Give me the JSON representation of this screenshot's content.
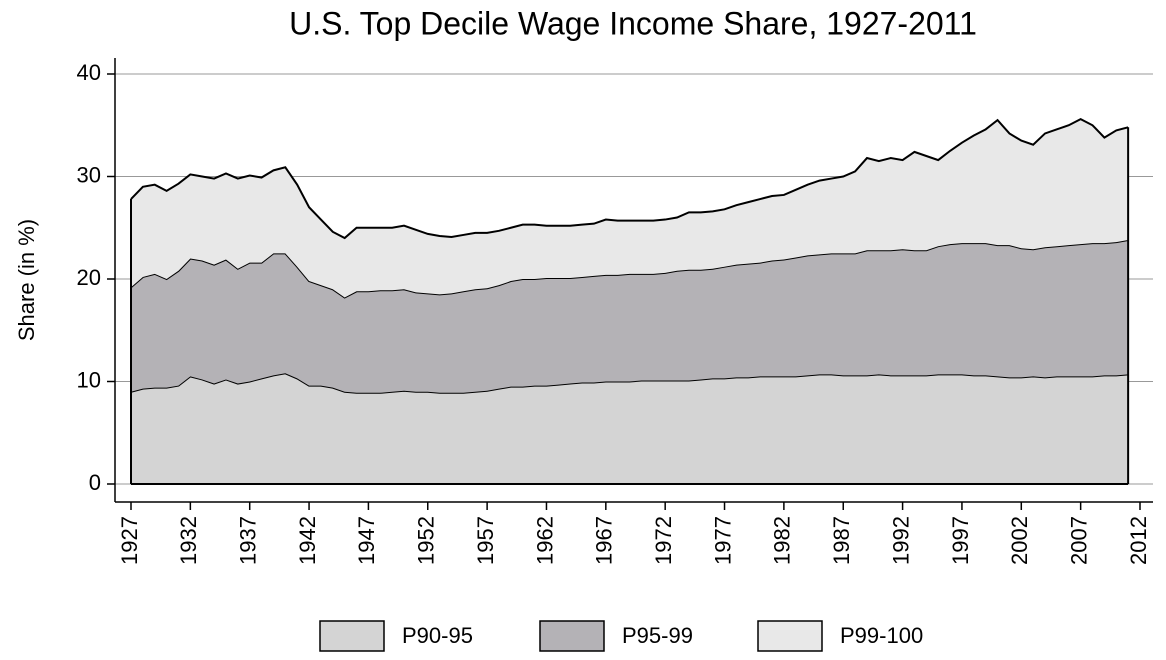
{
  "chart_data": {
    "type": "stacked_area",
    "title": "U.S. Top Decile Wage Income Share, 1927-2011",
    "y_label": "Share (in %)",
    "x": [
      1927,
      1928,
      1929,
      1930,
      1931,
      1932,
      1933,
      1934,
      1935,
      1936,
      1937,
      1938,
      1939,
      1940,
      1941,
      1942,
      1943,
      1944,
      1945,
      1946,
      1947,
      1948,
      1949,
      1950,
      1951,
      1952,
      1953,
      1954,
      1955,
      1956,
      1957,
      1958,
      1959,
      1960,
      1961,
      1962,
      1963,
      1964,
      1965,
      1966,
      1967,
      1968,
      1969,
      1970,
      1971,
      1972,
      1973,
      1974,
      1975,
      1976,
      1977,
      1978,
      1979,
      1980,
      1981,
      1982,
      1983,
      1984,
      1985,
      1986,
      1987,
      1988,
      1989,
      1990,
      1991,
      1992,
      1993,
      1994,
      1995,
      1996,
      1997,
      1998,
      1999,
      2000,
      2001,
      2002,
      2003,
      2004,
      2005,
      2006,
      2007,
      2008,
      2009,
      2010,
      2011
    ],
    "series": [
      {
        "name": "P90-95",
        "color": "#d4d4d4",
        "values": [
          9.0,
          9.3,
          9.4,
          9.4,
          9.6,
          10.5,
          10.2,
          9.8,
          10.2,
          9.8,
          10.0,
          10.3,
          10.6,
          10.8,
          10.3,
          9.6,
          9.6,
          9.4,
          9.0,
          8.9,
          8.9,
          8.9,
          9.0,
          9.1,
          9.0,
          9.0,
          8.9,
          8.9,
          8.9,
          9.0,
          9.1,
          9.3,
          9.5,
          9.5,
          9.6,
          9.6,
          9.7,
          9.8,
          9.9,
          9.9,
          10.0,
          10.0,
          10.0,
          10.1,
          10.1,
          10.1,
          10.1,
          10.1,
          10.2,
          10.3,
          10.3,
          10.4,
          10.4,
          10.5,
          10.5,
          10.5,
          10.5,
          10.6,
          10.7,
          10.7,
          10.6,
          10.6,
          10.6,
          10.7,
          10.6,
          10.6,
          10.6,
          10.6,
          10.7,
          10.7,
          10.7,
          10.6,
          10.6,
          10.5,
          10.4,
          10.4,
          10.5,
          10.4,
          10.5,
          10.5,
          10.5,
          10.5,
          10.6,
          10.6,
          10.7
        ]
      },
      {
        "name": "P95-99",
        "color": "#b4b2b6",
        "values": [
          10.2,
          10.9,
          11.1,
          10.6,
          11.2,
          11.5,
          11.6,
          11.6,
          11.7,
          11.2,
          11.6,
          11.3,
          11.9,
          11.7,
          10.9,
          10.2,
          9.8,
          9.6,
          9.2,
          9.9,
          9.9,
          10.0,
          9.9,
          9.9,
          9.7,
          9.6,
          9.6,
          9.7,
          9.9,
          10.0,
          10.0,
          10.1,
          10.3,
          10.5,
          10.4,
          10.5,
          10.4,
          10.3,
          10.3,
          10.4,
          10.4,
          10.4,
          10.5,
          10.4,
          10.4,
          10.5,
          10.7,
          10.8,
          10.7,
          10.7,
          10.9,
          11.0,
          11.1,
          11.1,
          11.3,
          11.4,
          11.6,
          11.7,
          11.7,
          11.8,
          11.9,
          11.9,
          12.2,
          12.1,
          12.2,
          12.3,
          12.2,
          12.2,
          12.5,
          12.7,
          12.8,
          12.9,
          12.9,
          12.8,
          12.9,
          12.6,
          12.4,
          12.7,
          12.7,
          12.8,
          12.9,
          13.0,
          12.9,
          13.0,
          13.1
        ]
      },
      {
        "name": "P99-100",
        "color": "#e8e8e8",
        "values": [
          8.6,
          8.8,
          8.7,
          8.6,
          8.5,
          8.2,
          8.2,
          8.4,
          8.4,
          8.8,
          8.5,
          8.3,
          8.1,
          8.4,
          8.0,
          7.2,
          6.4,
          5.6,
          5.8,
          6.2,
          6.2,
          6.1,
          6.1,
          6.2,
          6.1,
          5.8,
          5.7,
          5.5,
          5.5,
          5.5,
          5.4,
          5.3,
          5.2,
          5.3,
          5.3,
          5.1,
          5.1,
          5.1,
          5.1,
          5.1,
          5.4,
          5.3,
          5.2,
          5.2,
          5.2,
          5.2,
          5.2,
          5.6,
          5.6,
          5.6,
          5.6,
          5.8,
          6.0,
          6.2,
          6.3,
          6.3,
          6.6,
          6.9,
          7.2,
          7.3,
          7.5,
          8.0,
          9.0,
          8.7,
          9.0,
          8.7,
          9.6,
          9.2,
          8.4,
          9.1,
          9.8,
          10.5,
          11.1,
          12.2,
          10.9,
          10.5,
          10.2,
          11.1,
          11.4,
          11.7,
          12.2,
          11.5,
          10.3,
          10.9,
          11.0
        ]
      }
    ],
    "xlim": [
      1927,
      2012
    ],
    "xticks": [
      1927,
      1932,
      1937,
      1942,
      1947,
      1952,
      1957,
      1962,
      1967,
      1972,
      1977,
      1982,
      1987,
      1992,
      1997,
      2002,
      2007,
      2012
    ],
    "ylim": [
      0,
      40
    ],
    "yticks": [
      0,
      10,
      20,
      30,
      40
    ],
    "grid": true,
    "legend": "bottom"
  }
}
